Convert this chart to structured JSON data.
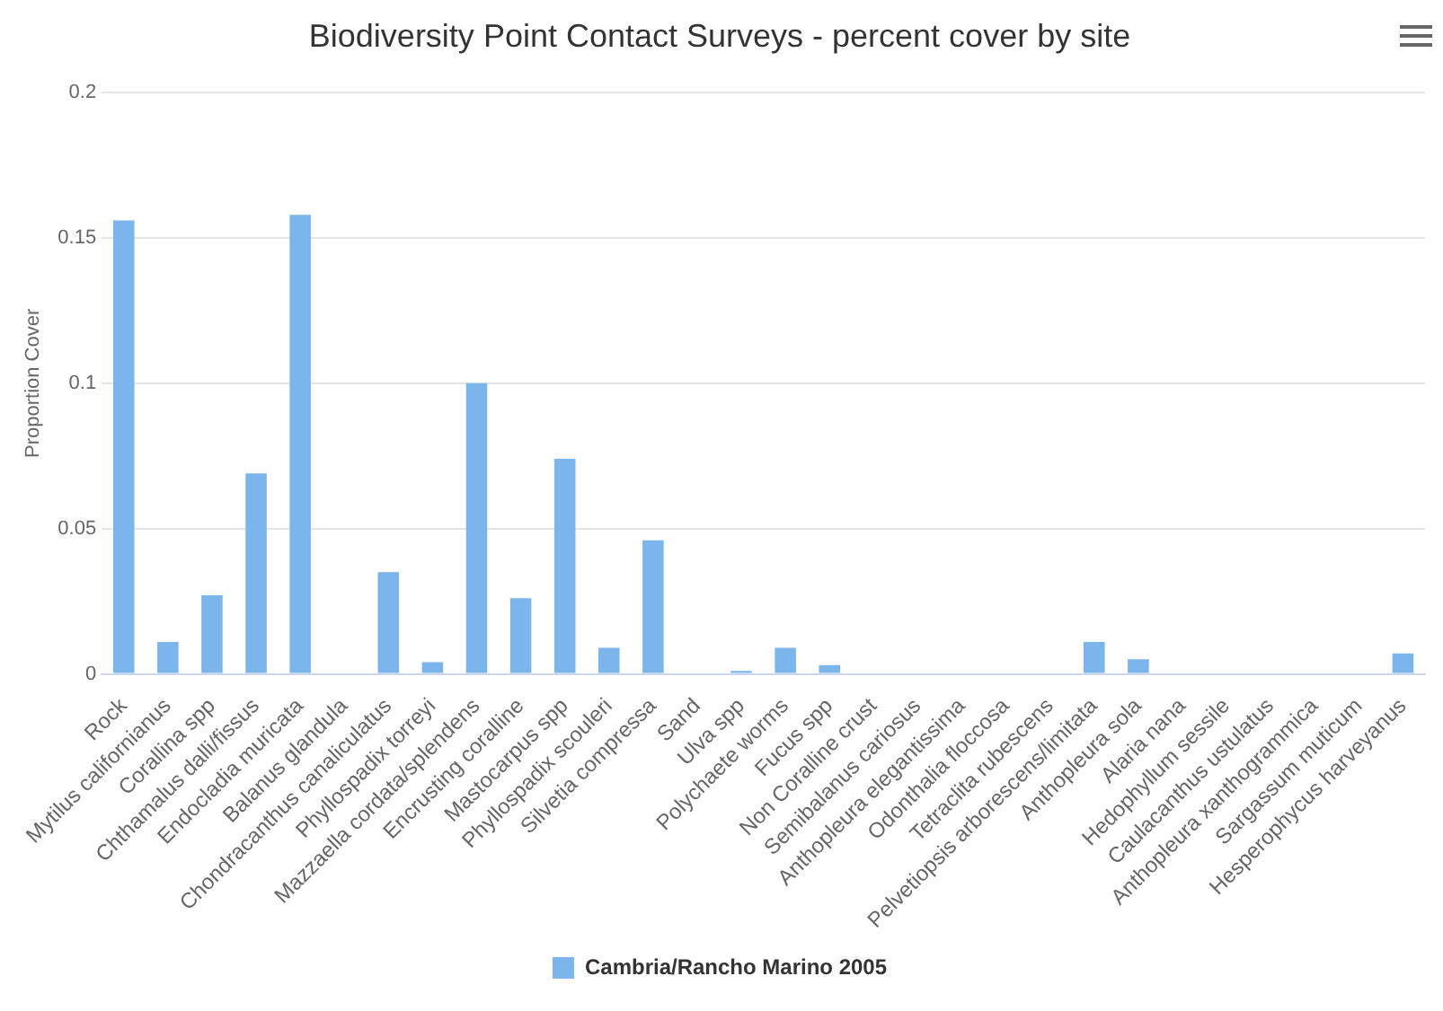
{
  "chart_data": {
    "type": "bar",
    "title": "Biodiversity Point Contact Surveys - percent cover by site",
    "ylabel": "Proportion Cover",
    "categories": [
      "Rock",
      "Mytilus californianus",
      "Corallina spp",
      "Chthamalus dalli/fissus",
      "Endocladia muricata",
      "Balanus glandula",
      "Chondracanthus canaliculatus",
      "Phyllospadix torreyi",
      "Mazzaella cordata/splendens",
      "Encrusting coralline",
      "Mastocarpus spp",
      "Phyllospadix scouleri",
      "Silvetia compressa",
      "Sand",
      "Ulva spp",
      "Polychaete worms",
      "Fucus spp",
      "Non Coralline crust",
      "Semibalanus cariosus",
      "Anthopleura elegantissima",
      "Odonthalia floccosa",
      "Tetraclita rubescens",
      "Pelvetiopsis arborescens/limitata",
      "Anthopleura sola",
      "Alaria nana",
      "Hedophyllum sessile",
      "Caulacanthus ustulatus",
      "Anthopleura xanthogrammica",
      "Sargassum muticum",
      "Hesperophycus harveyanus"
    ],
    "series": [
      {
        "name": "Cambria/Rancho Marino 2005",
        "color": "#7cb5ec",
        "values": [
          0.156,
          0.011,
          0.027,
          0.069,
          0.158,
          0,
          0.035,
          0.004,
          0.1,
          0.026,
          0.074,
          0.009,
          0.046,
          0,
          0.001,
          0.009,
          0.003,
          0,
          0,
          0,
          0,
          0,
          0.011,
          0.005,
          0,
          0,
          0,
          0,
          0,
          0.007
        ]
      }
    ],
    "ylim": [
      0,
      0.2
    ],
    "yticks": [
      0,
      0.05,
      0.1,
      0.15,
      0.2
    ],
    "grid": "y",
    "legend": "bottom"
  }
}
